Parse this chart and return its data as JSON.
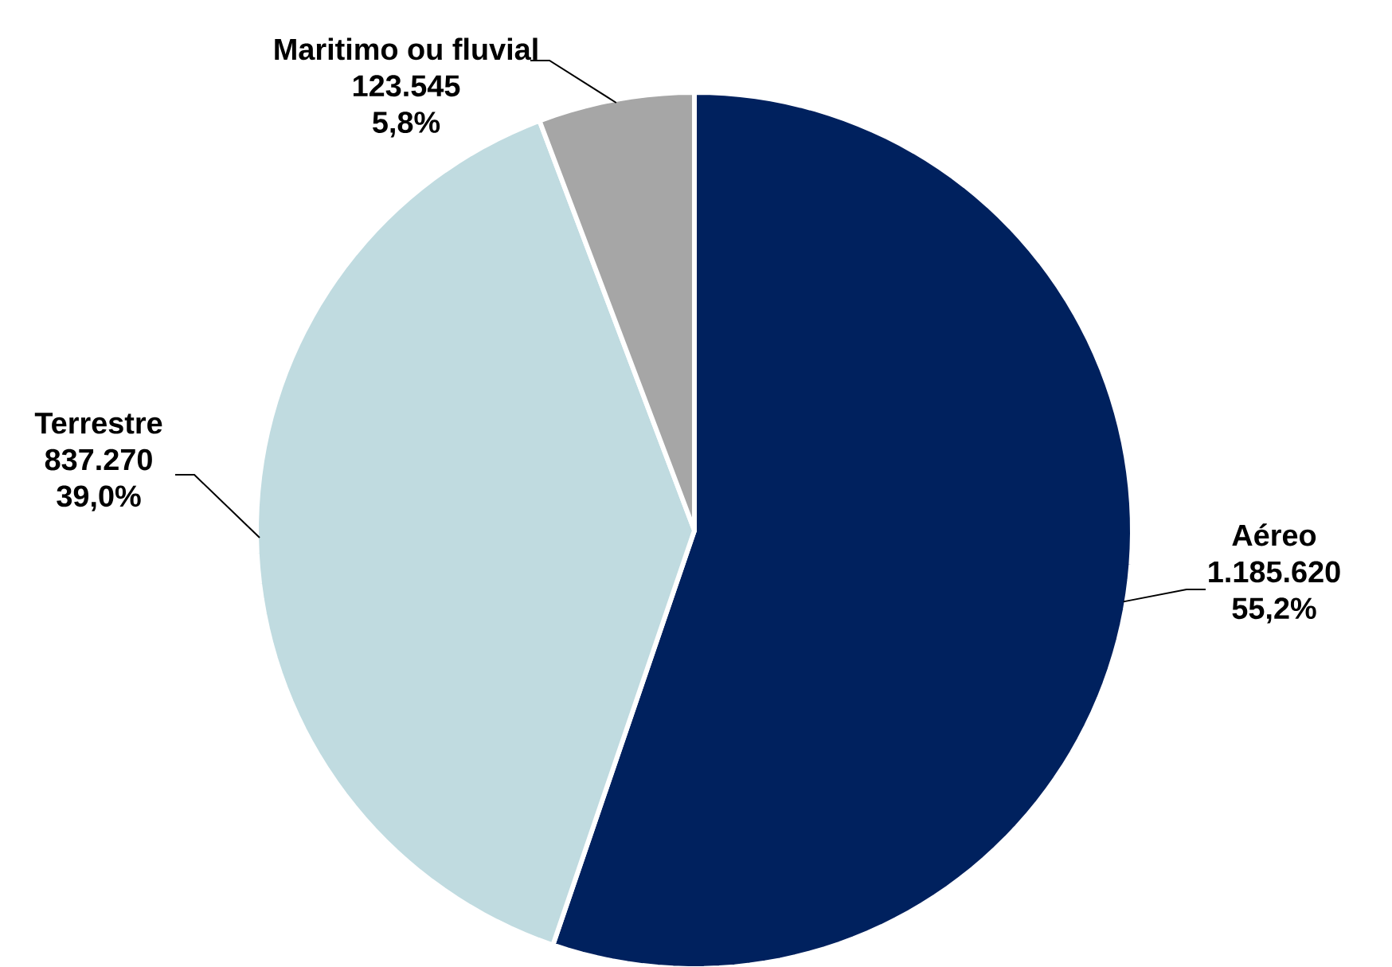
{
  "chart_data": {
    "type": "pie",
    "categories": [
      "Aéreo",
      "Terrestre",
      "Maritimo ou fluvial"
    ],
    "values": [
      1185620,
      837270,
      123545
    ],
    "value_labels": [
      "1.185.620",
      "837.270",
      "123.545"
    ],
    "annotations": [
      "55,2%",
      "39,0%",
      "5,8%"
    ],
    "colors": [
      "#00215e",
      "#c0dbe0",
      "#a6a6a6"
    ]
  }
}
